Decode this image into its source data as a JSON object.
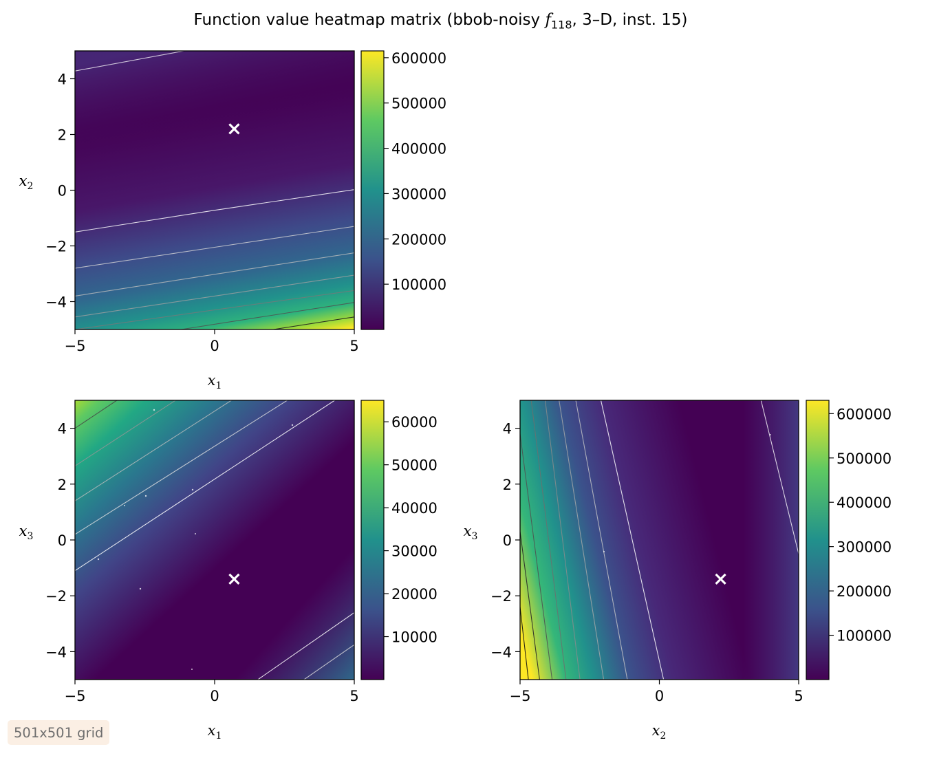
{
  "title": {
    "prefix": "Function value heatmap matrix (bbob-noisy ",
    "func_letter": "f",
    "func_sub": "118",
    "suffix": ", 3–D, inst. 15)"
  },
  "badge": "501x501 grid",
  "colors": {
    "marker": "#ffffff",
    "viridis": [
      "#440154",
      "#3b528b",
      "#21918c",
      "#5ec962",
      "#fde725"
    ]
  },
  "chart_data": [
    {
      "type": "heatmap",
      "x_var": "x1",
      "y_var": "x2",
      "xlabel": "x",
      "xlabel_sub": "1",
      "ylabel": "x",
      "ylabel_sub": "2",
      "xlim": [
        -5,
        5
      ],
      "ylim": [
        -5,
        5
      ],
      "xticks": [
        -5,
        0,
        5
      ],
      "xtick_labels": [
        "−5",
        "0",
        "5"
      ],
      "yticks": [
        -4,
        -2,
        0,
        2,
        4
      ],
      "ytick_labels": [
        "−4",
        "−2",
        "0",
        "2",
        "4"
      ],
      "colorbar": {
        "vmin": 0,
        "vmax": 615000,
        "ticks": [
          100000,
          200000,
          300000,
          400000,
          500000,
          600000
        ],
        "tick_labels": [
          "100000",
          "200000",
          "300000",
          "400000",
          "500000",
          "600000"
        ]
      },
      "optimum": {
        "x": 0.7,
        "y": 2.2
      },
      "contours": [
        {
          "level": 45000,
          "pts": [
            [
              -5,
              4.28
            ],
            [
              -1.1,
              5
            ]
          ],
          "color": "rgba(255,255,255,0.75)"
        },
        {
          "level": 90000,
          "pts": [
            [
              -5,
              -1.5
            ],
            [
              0,
              -0.72
            ],
            [
              5,
              0.02
            ]
          ],
          "color": "rgba(255,255,255,0.85)"
        },
        {
          "level": 160000,
          "pts": [
            [
              -5,
              -2.8
            ],
            [
              0,
              -2.05
            ],
            [
              5,
              -1.3
            ]
          ],
          "color": "rgba(215,215,215,0.8)"
        },
        {
          "level": 230000,
          "pts": [
            [
              -5,
              -3.8
            ],
            [
              0,
              -3.02
            ],
            [
              5,
              -2.25
            ]
          ],
          "color": "rgba(190,190,190,0.8)"
        },
        {
          "level": 300000,
          "pts": [
            [
              -5,
              -4.55
            ],
            [
              0,
              -3.8
            ],
            [
              5,
              -3.05
            ]
          ],
          "color": "rgba(160,160,160,0.8)"
        },
        {
          "level": 370000,
          "pts": [
            [
              -5,
              -5
            ],
            [
              0,
              -4.3
            ],
            [
              5,
              -3.6
            ]
          ],
          "color": "rgba(120,120,120,0.8)"
        },
        {
          "level": 440000,
          "pts": [
            [
              -1.2,
              -5
            ],
            [
              5,
              -4.03
            ]
          ],
          "color": "rgba(80,80,80,0.85)"
        },
        {
          "level": 510000,
          "pts": [
            [
              2.1,
              -5
            ],
            [
              5,
              -4.55
            ]
          ],
          "color": "rgba(30,30,30,0.9)"
        }
      ]
    },
    {
      "type": "heatmap",
      "x_var": "x1",
      "y_var": "x3",
      "xlabel": "x",
      "xlabel_sub": "1",
      "ylabel": "x",
      "ylabel_sub": "3",
      "xlim": [
        -5,
        5
      ],
      "ylim": [
        -5,
        5
      ],
      "xticks": [
        -5,
        0,
        5
      ],
      "xtick_labels": [
        "−5",
        "0",
        "5"
      ],
      "yticks": [
        -4,
        -2,
        0,
        2,
        4
      ],
      "ytick_labels": [
        "−4",
        "−2",
        "0",
        "2",
        "4"
      ],
      "colorbar": {
        "vmin": 0,
        "vmax": 65000,
        "ticks": [
          10000,
          20000,
          30000,
          40000,
          50000,
          60000
        ],
        "tick_labels": [
          "10000",
          "20000",
          "30000",
          "40000",
          "50000",
          "60000"
        ]
      },
      "optimum": {
        "x": 0.7,
        "y": -1.4
      },
      "contours": [
        {
          "level": 12000,
          "pts": [
            [
              -5,
              -1.1
            ],
            [
              4.3,
              5
            ]
          ],
          "color": "rgba(255,255,255,0.85)"
        },
        {
          "level": 20000,
          "pts": [
            [
              -5,
              0.2
            ],
            [
              2.6,
              5
            ]
          ],
          "color": "rgba(225,225,225,0.8)"
        },
        {
          "level": 28000,
          "pts": [
            [
              -5,
              1.4
            ],
            [
              0.6,
              5
            ]
          ],
          "color": "rgba(190,190,190,0.8)"
        },
        {
          "level": 36000,
          "pts": [
            [
              -5,
              2.65
            ],
            [
              -1.4,
              5
            ]
          ],
          "color": "rgba(150,150,150,0.8)"
        },
        {
          "level": 44000,
          "pts": [
            [
              -5,
              4.0
            ],
            [
              -3.5,
              5
            ]
          ],
          "color": "rgba(70,70,70,0.85)"
        },
        {
          "level": 12000,
          "pts": [
            [
              1.55,
              -5
            ],
            [
              5,
              -2.6
            ]
          ],
          "color": "rgba(255,255,255,0.85)"
        },
        {
          "level": 20000,
          "pts": [
            [
              3.2,
              -5
            ],
            [
              5,
              -3.75
            ]
          ],
          "color": "rgba(220,220,220,0.8)"
        }
      ]
    },
    {
      "type": "heatmap",
      "x_var": "x2",
      "y_var": "x3",
      "xlabel": "x",
      "xlabel_sub": "2",
      "ylabel": "x",
      "ylabel_sub": "3",
      "xlim": [
        -5,
        5
      ],
      "ylim": [
        -5,
        5
      ],
      "xticks": [
        -5,
        0,
        5
      ],
      "xtick_labels": [
        "−5",
        "0",
        "5"
      ],
      "yticks": [
        -4,
        -2,
        0,
        2,
        4
      ],
      "ytick_labels": [
        "−4",
        "−2",
        "0",
        "2",
        "4"
      ],
      "colorbar": {
        "vmin": 0,
        "vmax": 630000,
        "ticks": [
          100000,
          200000,
          300000,
          400000,
          500000,
          600000
        ],
        "tick_labels": [
          "100000",
          "200000",
          "300000",
          "400000",
          "500000",
          "600000"
        ]
      },
      "optimum": {
        "x": 2.2,
        "y": -1.4
      },
      "contours": [
        {
          "level": 45000,
          "pts": [
            [
              3.65,
              5
            ],
            [
              5,
              -0.5
            ]
          ],
          "color": "rgba(255,255,255,0.8)"
        },
        {
          "level": 90000,
          "pts": [
            [
              -2.1,
              5
            ],
            [
              0.15,
              -5
            ]
          ],
          "color": "rgba(255,255,255,0.85)"
        },
        {
          "level": 160000,
          "pts": [
            [
              -3.0,
              5
            ],
            [
              -1.15,
              -5
            ]
          ],
          "color": "rgba(200,200,200,0.8)"
        },
        {
          "level": 230000,
          "pts": [
            [
              -3.6,
              5
            ],
            [
              -2.0,
              -5
            ]
          ],
          "color": "rgba(170,170,170,0.8)"
        },
        {
          "level": 300000,
          "pts": [
            [
              -4.1,
              5
            ],
            [
              -2.85,
              -5
            ]
          ],
          "color": "rgba(140,140,140,0.8)"
        },
        {
          "level": 370000,
          "pts": [
            [
              -4.6,
              5
            ],
            [
              -3.35,
              -5
            ]
          ],
          "color": "rgba(110,110,110,0.8)"
        },
        {
          "level": 440000,
          "pts": [
            [
              -5,
              3.8
            ],
            [
              -3.85,
              -5
            ]
          ],
          "color": "rgba(80,80,80,0.85)"
        },
        {
          "level": 510000,
          "pts": [
            [
              -5,
              0.3
            ],
            [
              -4.3,
              -5
            ]
          ],
          "color": "rgba(40,40,40,0.9)"
        },
        {
          "level": 580000,
          "pts": [
            [
              -5,
              -2.4
            ],
            [
              -4.7,
              -5
            ]
          ],
          "color": "rgba(20,20,20,0.9)"
        }
      ]
    }
  ]
}
